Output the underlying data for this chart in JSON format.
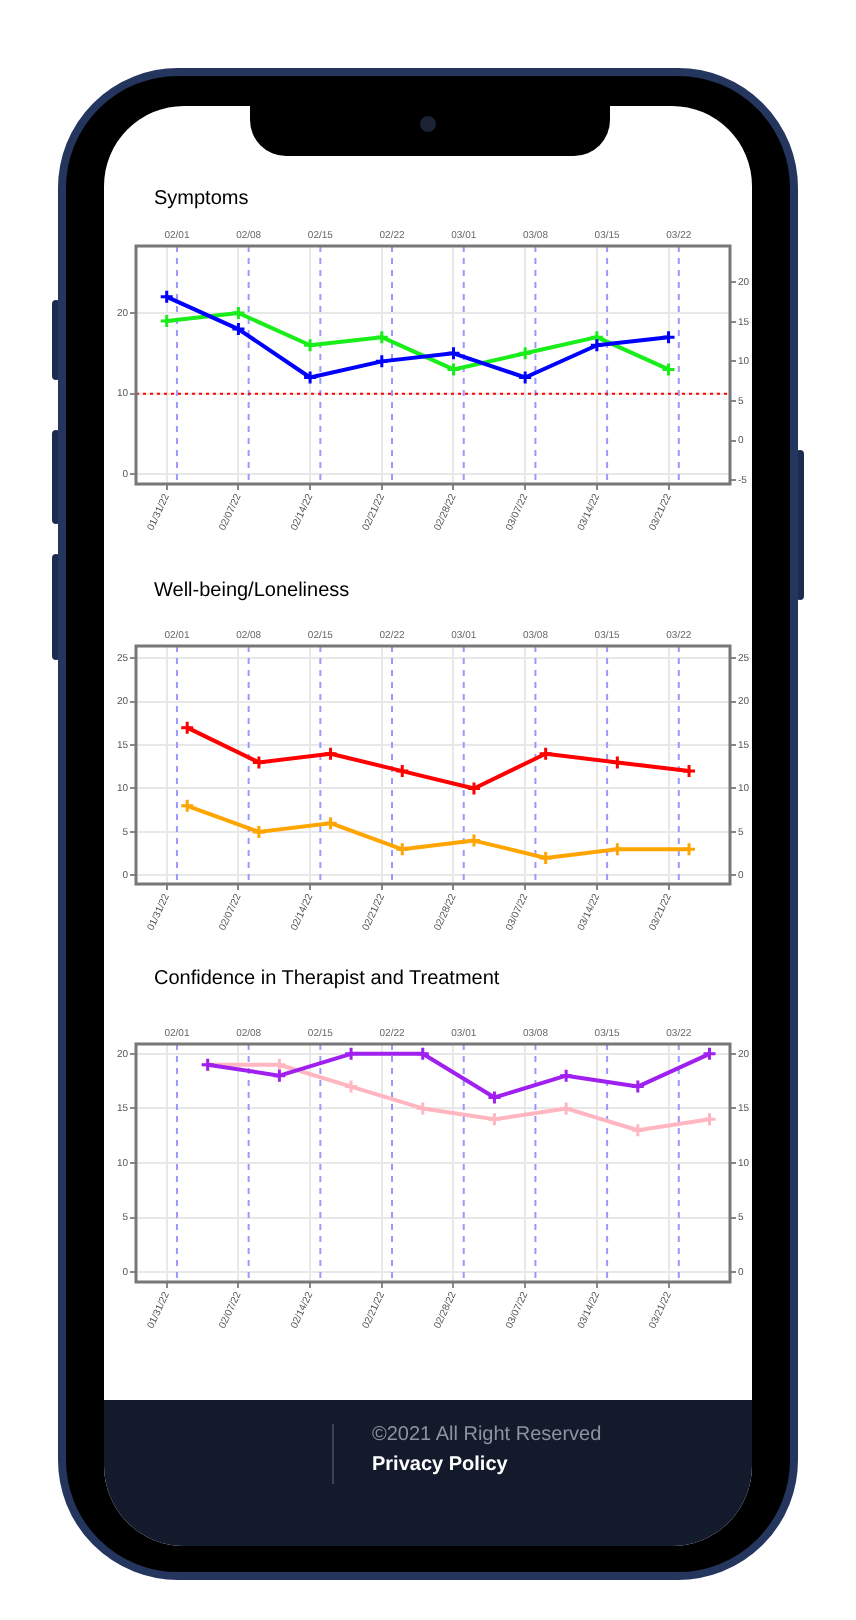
{
  "chart_data": [
    {
      "type": "line",
      "title": "Symptoms",
      "x": [
        "--01-31",
        "--02-07",
        "--02-14",
        "--02-21",
        "--02-28",
        "--03-07",
        "--03-14",
        "--03-21"
      ],
      "series": [
        {
          "color": "#0000ff",
          "values": [
            22,
            18,
            12,
            14,
            15,
            12,
            16,
            17
          ]
        },
        {
          "color": "#1aee1a",
          "values": [
            19,
            20,
            16,
            17,
            13,
            15,
            17,
            13
          ]
        }
      ],
      "xlim": [
        "--01-28",
        "--03-27"
      ],
      "xticks": [
        {
          "value": "--01-31",
          "label": "01/31/22"
        },
        {
          "value": "--02-07",
          "label": "02/07/22"
        },
        {
          "value": "--02-14",
          "label": "02/14/22"
        },
        {
          "value": "--02-21",
          "label": "02/21/22"
        },
        {
          "value": "--02-28",
          "label": "02/28/22"
        },
        {
          "value": "--03-07",
          "label": "03/07/22"
        },
        {
          "value": "--03-14",
          "label": "03/14/22"
        },
        {
          "value": "--03-21",
          "label": "03/21/22"
        }
      ],
      "ylim": [
        -1.2,
        28.3
      ],
      "yticks": [
        0,
        10,
        20
      ],
      "y2lim": [
        -5.5,
        24.6
      ],
      "y2ticks": [
        -5,
        0,
        5,
        10,
        15,
        20
      ],
      "grid": true,
      "marker": "cross",
      "ref_lines": [
        {
          "axis": "x",
          "value": "--02-01",
          "label": "02/01",
          "color": "#9999ff",
          "line_style": "dashed"
        },
        {
          "axis": "x",
          "value": "--02-08",
          "label": "02/08",
          "color": "#9999ff",
          "line_style": "dashed"
        },
        {
          "axis": "x",
          "value": "--02-15",
          "label": "02/15",
          "color": "#9999ff",
          "line_style": "dashed"
        },
        {
          "axis": "x",
          "value": "--02-22",
          "label": "02/22",
          "color": "#9999ff",
          "line_style": "dashed"
        },
        {
          "axis": "x",
          "value": "--03-01",
          "label": "03/01",
          "color": "#9999ff",
          "line_style": "dashed"
        },
        {
          "axis": "x",
          "value": "--03-08",
          "label": "03/08",
          "color": "#9999ff",
          "line_style": "dashed"
        },
        {
          "axis": "x",
          "value": "--03-15",
          "label": "03/15",
          "color": "#9999ff",
          "line_style": "dashed"
        },
        {
          "axis": "x",
          "value": "--03-22",
          "label": "03/22",
          "color": "#9999ff",
          "line_style": "dashed"
        },
        {
          "axis": "y",
          "value": 10,
          "color": "#ff0000",
          "line_style": "dotted"
        }
      ]
    },
    {
      "type": "line",
      "title": "Well-being/Loneliness",
      "x": [
        "--02-02",
        "--02-09",
        "--02-16",
        "--02-23",
        "--03-02",
        "--03-09",
        "--03-16",
        "--03-23"
      ],
      "series": [
        {
          "color": "#ff0000",
          "values": [
            17,
            13,
            14,
            12,
            10,
            14,
            13,
            12
          ]
        },
        {
          "color": "#ffa500",
          "values": [
            8,
            5,
            6,
            3,
            4,
            2,
            3,
            3
          ]
        }
      ],
      "xlim": [
        "--01-28",
        "--03-27"
      ],
      "xticks": [
        {
          "value": "--01-31",
          "label": "01/31/22"
        },
        {
          "value": "--02-07",
          "label": "02/07/22"
        },
        {
          "value": "--02-14",
          "label": "02/14/22"
        },
        {
          "value": "--02-21",
          "label": "02/21/22"
        },
        {
          "value": "--02-28",
          "label": "02/28/22"
        },
        {
          "value": "--03-07",
          "label": "03/07/22"
        },
        {
          "value": "--03-14",
          "label": "03/14/22"
        },
        {
          "value": "--03-21",
          "label": "03/21/22"
        }
      ],
      "ylim": [
        -1,
        26.4
      ],
      "yticks": [
        0,
        5,
        10,
        15,
        20,
        25
      ],
      "y2lim": [
        -1,
        26.4
      ],
      "y2ticks": [
        0,
        5,
        10,
        15,
        20,
        25
      ],
      "grid": true,
      "marker": "cross",
      "ref_lines": [
        {
          "axis": "x",
          "value": "--02-01",
          "label": "02/01",
          "color": "#9999ff",
          "line_style": "dashed"
        },
        {
          "axis": "x",
          "value": "--02-08",
          "label": "02/08",
          "color": "#9999ff",
          "line_style": "dashed"
        },
        {
          "axis": "x",
          "value": "--02-15",
          "label": "02/15",
          "color": "#9999ff",
          "line_style": "dashed"
        },
        {
          "axis": "x",
          "value": "--02-22",
          "label": "02/22",
          "color": "#9999ff",
          "line_style": "dashed"
        },
        {
          "axis": "x",
          "value": "--03-01",
          "label": "03/01",
          "color": "#9999ff",
          "line_style": "dashed"
        },
        {
          "axis": "x",
          "value": "--03-08",
          "label": "03/08",
          "color": "#9999ff",
          "line_style": "dashed"
        },
        {
          "axis": "x",
          "value": "--03-15",
          "label": "03/15",
          "color": "#9999ff",
          "line_style": "dashed"
        },
        {
          "axis": "x",
          "value": "--03-22",
          "label": "03/22",
          "color": "#9999ff",
          "line_style": "dashed"
        }
      ]
    },
    {
      "type": "line",
      "title": "Confidence in Therapist and Treatment",
      "x": [
        "--02-04",
        "--02-11",
        "--02-18",
        "--02-25",
        "--03-04",
        "--03-11",
        "--03-18",
        "--03-25"
      ],
      "series": [
        {
          "color": "#a020f0",
          "values": [
            19,
            18,
            20,
            20,
            16,
            18,
            17,
            20
          ]
        },
        {
          "color": "#ffb6c1",
          "values": [
            19,
            19,
            17,
            15,
            14,
            15,
            13,
            14
          ]
        }
      ],
      "xlim": [
        "--01-28",
        "--03-27"
      ],
      "xticks": [
        {
          "value": "--01-31",
          "label": "01/31/22"
        },
        {
          "value": "--02-07",
          "label": "02/07/22"
        },
        {
          "value": "--02-14",
          "label": "02/14/22"
        },
        {
          "value": "--02-21",
          "label": "02/21/22"
        },
        {
          "value": "--02-28",
          "label": "02/28/22"
        },
        {
          "value": "--03-07",
          "label": "03/07/22"
        },
        {
          "value": "--03-14",
          "label": "03/14/22"
        },
        {
          "value": "--03-21",
          "label": "03/21/22"
        }
      ],
      "ylim": [
        -0.9,
        20.9
      ],
      "yticks": [
        0,
        5,
        10,
        15,
        20
      ],
      "y2lim": [
        -0.9,
        20.9
      ],
      "y2ticks": [
        0,
        5,
        10,
        15,
        20
      ],
      "grid": true,
      "marker": "cross",
      "ref_lines": [
        {
          "axis": "x",
          "value": "--02-01",
          "label": "02/01",
          "color": "#9999ff",
          "line_style": "dashed"
        },
        {
          "axis": "x",
          "value": "--02-08",
          "label": "02/08",
          "color": "#9999ff",
          "line_style": "dashed"
        },
        {
          "axis": "x",
          "value": "--02-15",
          "label": "02/15",
          "color": "#9999ff",
          "line_style": "dashed"
        },
        {
          "axis": "x",
          "value": "--02-22",
          "label": "02/22",
          "color": "#9999ff",
          "line_style": "dashed"
        },
        {
          "axis": "x",
          "value": "--03-01",
          "label": "03/01",
          "color": "#9999ff",
          "line_style": "dashed"
        },
        {
          "axis": "x",
          "value": "--03-08",
          "label": "03/08",
          "color": "#9999ff",
          "line_style": "dashed"
        },
        {
          "axis": "x",
          "value": "--03-15",
          "label": "03/15",
          "color": "#9999ff",
          "line_style": "dashed"
        },
        {
          "axis": "x",
          "value": "--03-22",
          "label": "03/22",
          "color": "#9999ff",
          "line_style": "dashed"
        }
      ]
    },
    {
      "type": "other",
      "annotations": [
        "©2021 All Right Reserved",
        "Privacy Policy"
      ]
    }
  ]
}
